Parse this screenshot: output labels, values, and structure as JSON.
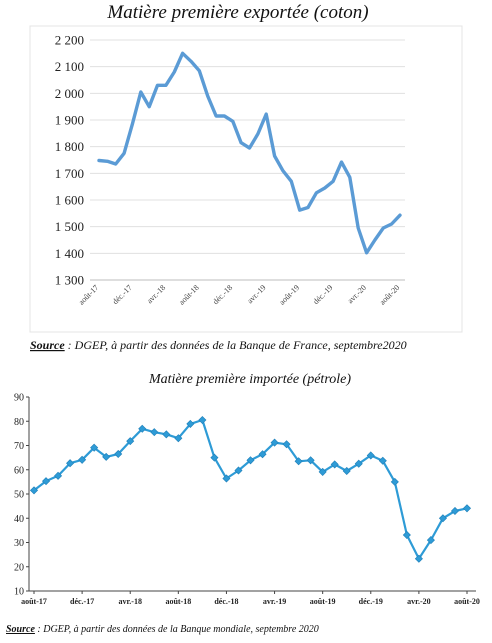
{
  "chart_data": [
    {
      "type": "line",
      "title": "Matière première exportée (coton)",
      "xlabel": "",
      "ylabel": "",
      "ylim": [
        1300,
        2200
      ],
      "yticks": [
        1300,
        1400,
        1500,
        1600,
        1700,
        1800,
        1900,
        2000,
        2100,
        2200
      ],
      "ytick_labels": [
        "1 300",
        "1 400",
        "1 500",
        "1 600",
        "1 700",
        "1 800",
        "1 900",
        "2 000",
        "2 100",
        "2 200"
      ],
      "x": [
        "août-17",
        "sept.-17",
        "oct.-17",
        "nov.-17",
        "déc.-17",
        "janv.-18",
        "févr.-18",
        "mars-18",
        "avr.-18",
        "mai-18",
        "juin-18",
        "juil.-18",
        "août-18",
        "sept.-18",
        "oct.-18",
        "nov.-18",
        "déc.-18",
        "janv.-19",
        "févr.-19",
        "mars-19",
        "avr.-19",
        "mai-19",
        "juin-19",
        "juil.-19",
        "août-19",
        "sept.-19",
        "oct.-19",
        "nov.-19",
        "déc.-19",
        "janv.-20",
        "févr.-20",
        "mars-20",
        "avr.-20",
        "mai-20",
        "juin-20",
        "juil.-20",
        "août-20"
      ],
      "xtick_labels": [
        "août-17",
        "déc.-17",
        "avr.-18",
        "août-18",
        "déc.-18",
        "avr.-19",
        "août-19",
        "déc.-19",
        "avr.-20",
        "août-20"
      ],
      "series": [
        {
          "values": [
            1748,
            1745,
            1735,
            1775,
            1885,
            2005,
            1950,
            2030,
            2030,
            2080,
            2150,
            2120,
            2085,
            1990,
            1915,
            1915,
            1895,
            1815,
            1795,
            1848,
            1922,
            1765,
            1710,
            1670,
            1562,
            1572,
            1627,
            1645,
            1670,
            1742,
            1685,
            1495,
            1402,
            1450,
            1495,
            1510,
            1543
          ]
        }
      ],
      "color": "#5b9bd5",
      "grid": true,
      "source": {
        "label": "Source",
        "text": " : DGEP, à partir des données de la Banque de France, septembre2020"
      }
    },
    {
      "type": "line",
      "title": "Matière première importée (pétrole)",
      "xlabel": "",
      "ylabel": "",
      "ylim": [
        10,
        90
      ],
      "yticks": [
        10,
        20,
        30,
        40,
        50,
        60,
        70,
        80,
        90
      ],
      "x": [
        "août-17",
        "sept.-17",
        "oct.-17",
        "nov.-17",
        "déc.-17",
        "janv.-18",
        "févr.-18",
        "mars-18",
        "avr.-18",
        "mai-18",
        "juin-18",
        "juil.-18",
        "août-18",
        "sept.-18",
        "oct.-18",
        "nov.-18",
        "déc.-18",
        "janv.-19",
        "févr.-19",
        "mars-19",
        "avr.-19",
        "mai-19",
        "juin-19",
        "juil.-19",
        "août-19",
        "sept.-19",
        "oct.-19",
        "nov.-19",
        "déc.-19",
        "janv.-20",
        "févr.-20",
        "mars-20",
        "avr.-20",
        "mai-20",
        "juin-20",
        "juil.-20",
        "août-20"
      ],
      "xtick_labels": [
        "août-17",
        "déc.-17",
        "avr.-18",
        "août-18",
        "déc.-18",
        "avr.-19",
        "août-19",
        "déc.-19",
        "avr.-20",
        "août-20"
      ],
      "series": [
        {
          "values": [
            51.5,
            55.3,
            57.5,
            62.7,
            64.1,
            69.1,
            65.3,
            66.5,
            71.8,
            76.9,
            75.5,
            74.6,
            73.0,
            78.9,
            80.5,
            65.0,
            56.4,
            59.7,
            63.9,
            66.4,
            71.2,
            70.5,
            63.5,
            63.9,
            59.1,
            62.2,
            59.5,
            62.5,
            65.9,
            63.7,
            55.0,
            33.1,
            23.3,
            31.0,
            40.0,
            43.0,
            44.1
          ]
        }
      ],
      "color": "#2e9bd6",
      "marker_color": "#2e9bd6",
      "grid": false,
      "source": {
        "label": "Source",
        "text": " : DGEP, à partir des données de la Banque mondiale, septembre 2020"
      }
    }
  ]
}
